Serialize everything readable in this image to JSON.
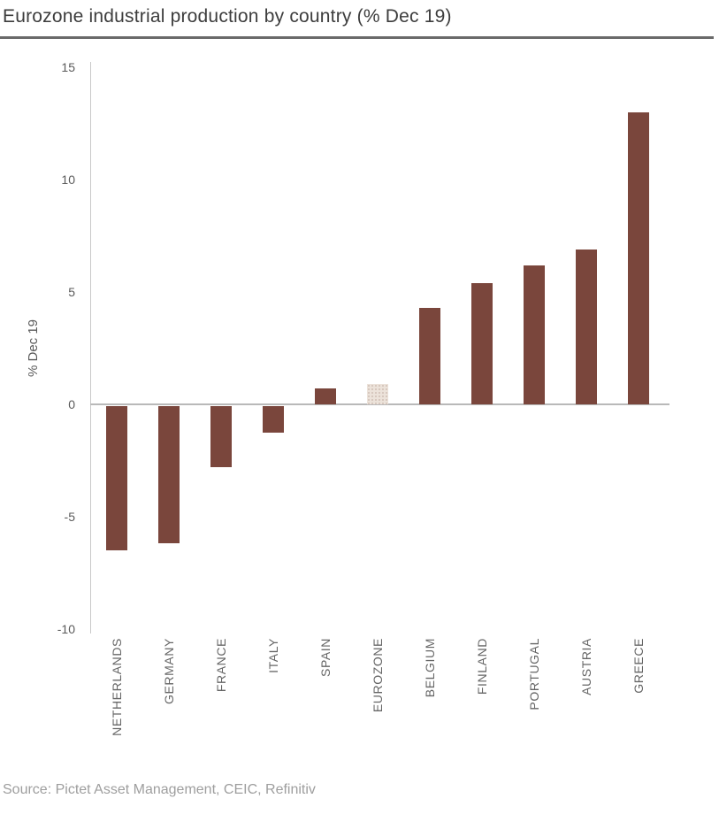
{
  "title": "Eurozone industrial production by country (% Dec 19)",
  "source": "Source: Pictet Asset Management, CEIC, Refinitiv",
  "chart_data": {
    "type": "bar",
    "title": "Eurozone industrial production by country (% Dec 19)",
    "categories": [
      "NETHERLANDS",
      "GERMANY",
      "FRANCE",
      "ITALY",
      "SPAIN",
      "EUROZONE",
      "BELGIUM",
      "FINLAND",
      "PORTUGAL",
      "AUSTRIA",
      "GREECE"
    ],
    "values": [
      -6.4,
      -6.1,
      -2.7,
      -1.2,
      0.7,
      0.9,
      4.3,
      5.4,
      6.2,
      6.9,
      13.0
    ],
    "highlight_category": "EUROZONE",
    "xlabel": "",
    "ylabel": "% Dec 19",
    "yticks": [
      15,
      10,
      5,
      0,
      -5,
      -10
    ],
    "ylim": [
      -10,
      15
    ],
    "grid": false,
    "legend": false,
    "colors": {
      "bar": "#7a463c",
      "highlight_bar": "#ece3da",
      "axis_line": "#c9c9c9",
      "zero_line": "#b9b9b9",
      "tick_text": "#5a5a5a",
      "label_text": "#666666",
      "title_text": "#3d3d3d",
      "source_text": "#9e9e9e"
    }
  }
}
